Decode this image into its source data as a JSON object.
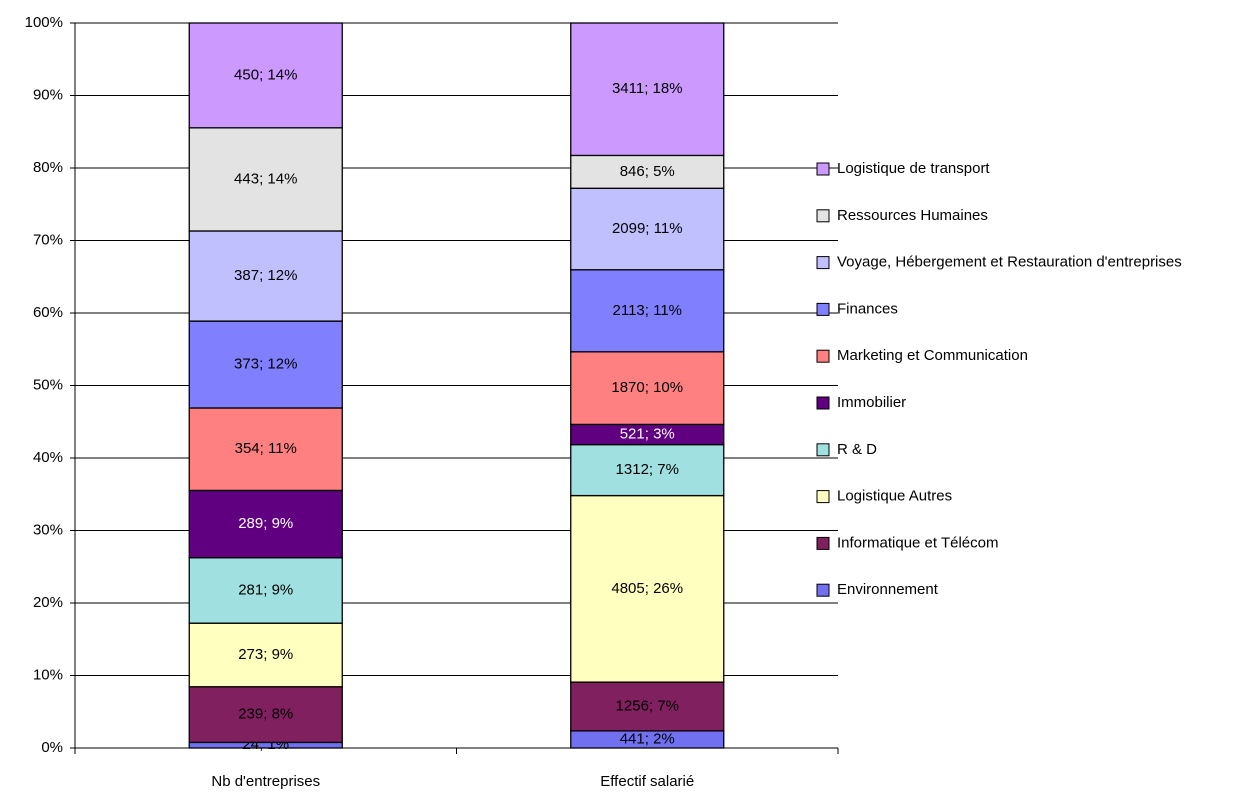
{
  "chart_data": {
    "type": "stacked_percent_bar",
    "categories": [
      "Nb d'entreprises",
      "Effectif salarié"
    ],
    "series": [
      {
        "name": "Environnement",
        "color": "#7070f0",
        "label_color": "#000000",
        "values": [
          24,
          441
        ],
        "value_labels": [
          "24; 1%",
          "441; 2%"
        ]
      },
      {
        "name": "Informatique et Télécom",
        "color": "#80205f",
        "label_color": "#000000",
        "values": [
          239,
          1256
        ],
        "value_labels": [
          "239; 8%",
          "1256; 7%"
        ]
      },
      {
        "name": "Logistique Autres",
        "color": "#ffffc0",
        "label_color": "#000000",
        "values": [
          273,
          4805
        ],
        "value_labels": [
          "273; 9%",
          "4805; 26%"
        ]
      },
      {
        "name": "R & D",
        "color": "#a0e0e0",
        "label_color": "#000000",
        "values": [
          281,
          1312
        ],
        "value_labels": [
          "281; 9%",
          "1312; 7%"
        ]
      },
      {
        "name": "Immobilier",
        "color": "#600080",
        "label_color": "#ffffff",
        "values": [
          289,
          521
        ],
        "value_labels": [
          "289; 9%",
          "521; 3%"
        ]
      },
      {
        "name": "Marketing et Communication",
        "color": "#ff8080",
        "label_color": "#000000",
        "values": [
          354,
          1870
        ],
        "value_labels": [
          "354; 11%",
          "1870; 10%"
        ]
      },
      {
        "name": "Finances",
        "color": "#8080ff",
        "label_color": "#000000",
        "values": [
          373,
          2113
        ],
        "value_labels": [
          "373; 12%",
          "2113; 11%"
        ]
      },
      {
        "name": "Voyage, Hébergement et Restauration d'entreprises",
        "color": "#c0c0ff",
        "label_color": "#000000",
        "values": [
          387,
          2099
        ],
        "value_labels": [
          "387; 12%",
          "2099; 11%"
        ]
      },
      {
        "name": "Ressources Humaines",
        "color": "#e3e3e3",
        "label_color": "#000000",
        "values": [
          443,
          846
        ],
        "value_labels": [
          "443; 14%",
          "846; 5%"
        ]
      },
      {
        "name": "Logistique de transport",
        "color": "#cc99ff",
        "label_color": "#000000",
        "values": [
          450,
          3411
        ],
        "value_labels": [
          "450; 14%",
          "3411; 18%"
        ]
      }
    ],
    "ylim": [
      0,
      100
    ],
    "yticks": [
      {
        "value": 0,
        "label": "0%"
      },
      {
        "value": 10,
        "label": "10%"
      },
      {
        "value": 20,
        "label": "20%"
      },
      {
        "value": 30,
        "label": "30%"
      },
      {
        "value": 40,
        "label": "40%"
      },
      {
        "value": 50,
        "label": "50%"
      },
      {
        "value": 60,
        "label": "60%"
      },
      {
        "value": 70,
        "label": "70%"
      },
      {
        "value": 80,
        "label": "80%"
      },
      {
        "value": 90,
        "label": "90%"
      },
      {
        "value": 100,
        "label": "100%"
      }
    ],
    "grid": true,
    "legend": "right"
  }
}
